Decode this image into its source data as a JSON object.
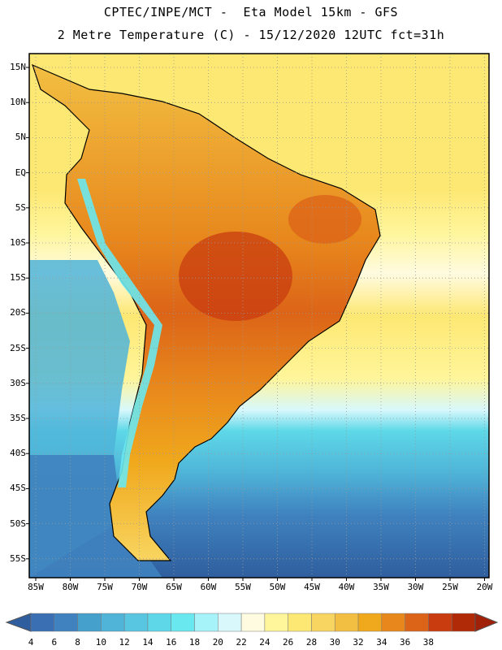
{
  "header": {
    "line1": "CPTEC/INPE/MCT -  Eta Model 15km - GFS",
    "line2": "2 Metre Temperature (C) - 15/12/2020 12UTC fct=31h"
  },
  "map": {
    "lat_labels": [
      "15N",
      "10N",
      "5N",
      "EQ",
      "5S",
      "10S",
      "15S",
      "20S",
      "25S",
      "30S",
      "35S",
      "40S",
      "45S",
      "50S",
      "55S"
    ],
    "lon_labels": [
      "85W",
      "80W",
      "75W",
      "70W",
      "65W",
      "60W",
      "55W",
      "50W",
      "45W",
      "40W",
      "35W",
      "30W",
      "25W",
      "20W"
    ],
    "gridlines": "dotted"
  },
  "colorbar": {
    "labels": [
      "4",
      "6",
      "8",
      "10",
      "12",
      "14",
      "16",
      "18",
      "20",
      "22",
      "24",
      "26",
      "28",
      "30",
      "32",
      "34",
      "36",
      "38"
    ],
    "colors": [
      "#3a6fb3",
      "#3f82bf",
      "#45a0cc",
      "#4fb4d8",
      "#58c6e0",
      "#5ed8e8",
      "#6ae8f0",
      "#a6f4fa",
      "#d8f8fc",
      "#fffbe0",
      "#fff59a",
      "#fde873",
      "#f8d560",
      "#f2bf42",
      "#f0a81c",
      "#e8881c",
      "#dc6418",
      "#c83c10",
      "#b02a08"
    ]
  }
}
